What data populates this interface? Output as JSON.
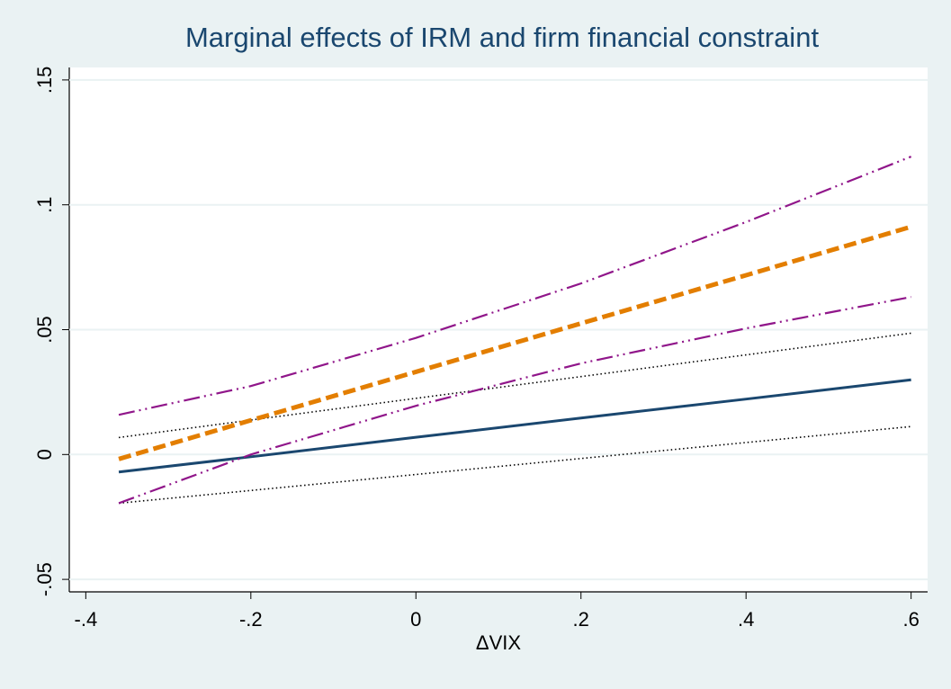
{
  "chart_data": {
    "type": "line",
    "title": "Marginal effects of IRM and firm financial constraint",
    "x_label": "ΔVIX",
    "x": [
      -0.36,
      -0.2,
      0,
      0.2,
      0.4,
      0.6
    ],
    "xlim": [
      -0.42,
      0.62
    ],
    "ylim": [
      -0.055,
      0.155
    ],
    "xticks": [
      {
        "value": -0.4,
        "label": "-.4"
      },
      {
        "value": -0.2,
        "label": "-.2"
      },
      0,
      {
        "value": 0.2,
        "label": ".2"
      },
      {
        "value": 0.4,
        "label": ".4"
      },
      {
        "value": 0.6,
        "label": ".6"
      }
    ],
    "yticks": [
      {
        "value": -0.05,
        "label": "-.05"
      },
      0,
      {
        "value": 0.05,
        "label": ".05"
      },
      {
        "value": 0.1,
        "label": ".1"
      },
      {
        "value": 0.15,
        "label": ".15"
      }
    ],
    "grid": true,
    "series": [
      {
        "color": "#000000",
        "style": "dotted",
        "values": [
          0.0068,
          0.0138,
          0.0225,
          0.0312,
          0.0399,
          0.0486
        ]
      },
      {
        "color": "#000000",
        "style": "dotted",
        "values": [
          -0.0195,
          -0.0144,
          -0.008,
          -0.0016,
          0.0048,
          0.0112
        ]
      },
      {
        "color": "#1a476f",
        "style": "solid",
        "values": [
          -0.007,
          -0.0009,
          0.0069,
          0.0146,
          0.0222,
          0.0299
        ]
      },
      {
        "color": "#90168a",
        "style": "dashdotdot",
        "values": [
          0.0159,
          0.0274,
          0.0467,
          0.0685,
          0.0931,
          0.1193
        ]
      },
      {
        "color": "#90168a",
        "style": "dashdotdot",
        "values": [
          -0.0195,
          0.0,
          0.0195,
          0.0365,
          0.0505,
          0.0631
        ]
      },
      {
        "color": "#e37e00",
        "style": "dashed",
        "values": [
          -0.0018,
          0.0137,
          0.0331,
          0.0525,
          0.0718,
          0.0912
        ]
      }
    ]
  }
}
